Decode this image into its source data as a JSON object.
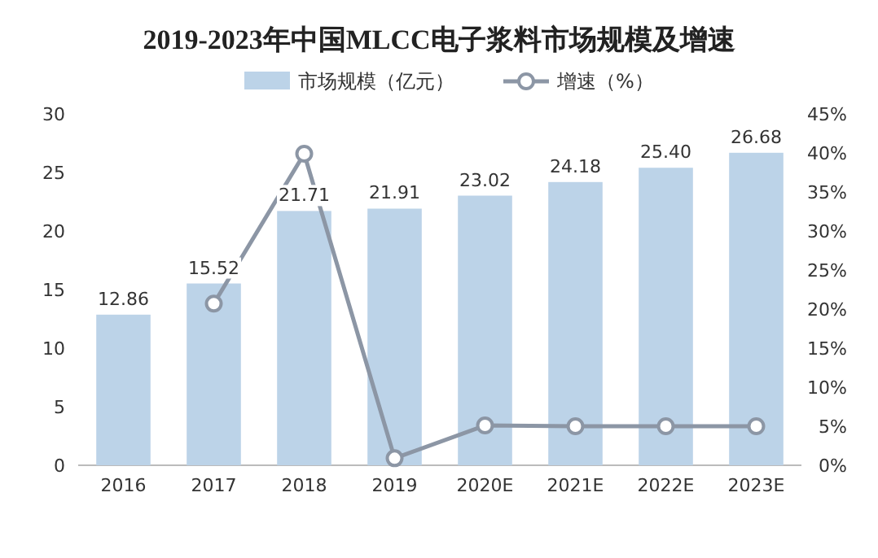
{
  "chart_data": {
    "type": "bar",
    "title": "2019-2023年中国MLCC电子浆料市场规模及增速",
    "categories": [
      "2016",
      "2017",
      "2018",
      "2019",
      "2020E",
      "2021E",
      "2022E",
      "2023E"
    ],
    "series": [
      {
        "name": "市场规模（亿元）",
        "color": "#bcd3e8",
        "values": [
          12.86,
          15.52,
          21.71,
          21.91,
          23.02,
          24.18,
          25.4,
          26.68
        ],
        "value_labels": [
          "12.86",
          "15.52",
          "21.71",
          "21.91",
          "23.02",
          "24.18",
          "25.40",
          "26.68"
        ]
      },
      {
        "name": "增速（%）",
        "type": "line",
        "axis": "y2",
        "color": "#8c96a5",
        "marker": "circle",
        "values": [
          null,
          20.7,
          39.9,
          0.9,
          5.1,
          5.0,
          5.0,
          5.0
        ]
      }
    ],
    "ylim": [
      0,
      30
    ],
    "yticks": [
      0,
      5,
      10,
      15,
      20,
      25,
      30
    ],
    "y2lim": [
      0,
      45
    ],
    "y2ticks": [
      {
        "value": 0,
        "label": "0%"
      },
      {
        "value": 5,
        "label": "5%"
      },
      {
        "value": 10,
        "label": "10%"
      },
      {
        "value": 15,
        "label": "15%"
      },
      {
        "value": 20,
        "label": "20%"
      },
      {
        "value": 25,
        "label": "25%"
      },
      {
        "value": 30,
        "label": "30%"
      },
      {
        "value": 35,
        "label": "35%"
      },
      {
        "value": 40,
        "label": "40%"
      },
      {
        "value": 45,
        "label": "45%"
      }
    ],
    "legend": "top"
  }
}
